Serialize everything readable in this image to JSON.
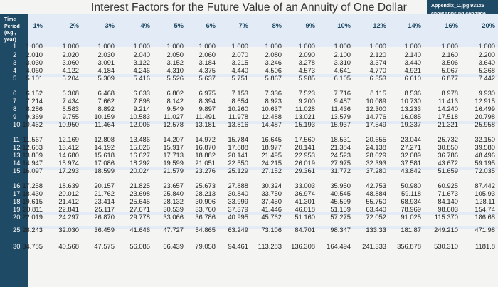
{
  "title": "Interest Factors for the Future Value of an Annuity of One Dollar",
  "badge": [
    "Appendix_C.jpg 931x5",
    "cnow.apps.ng.cengage."
  ],
  "corner_header": [
    "Time",
    "Period",
    "(e.g.,",
    "year)"
  ],
  "rates": [
    "1%",
    "2%",
    "3%",
    "4%",
    "5%",
    "6%",
    "7%",
    "8%",
    "9%",
    "10%",
    "12%",
    "14%",
    "16%",
    "20%"
  ],
  "rows": [
    {
      "n": "1",
      "v": [
        "1.000",
        "1.000",
        "1.000",
        "1.000",
        "1.000",
        "1.000",
        "1.000",
        "1.000",
        "1.000",
        "1.000",
        "1.000",
        "1.000",
        "1.000",
        "1.000"
      ]
    },
    {
      "n": "2",
      "v": [
        "2.010",
        "2.020",
        "2.030",
        "2.040",
        "2.050",
        "2.060",
        "2.070",
        "2.080",
        "2.090",
        "2.100",
        "2.120",
        "2.140",
        "2.160",
        "2.200"
      ]
    },
    {
      "n": "3",
      "v": [
        "3.030",
        "3.060",
        "3.091",
        "3.122",
        "3.152",
        "3.184",
        "3.215",
        "3.246",
        "3.278",
        "3.310",
        "3.374",
        "3.440",
        "3.506",
        "3.640"
      ]
    },
    {
      "n": "4",
      "v": [
        "4.060",
        "4.122",
        "4.184",
        "4.246",
        "4.310",
        "4.375",
        "4.440",
        "4.506",
        "4.573",
        "4.641",
        "4.770",
        "4.921",
        "5.067",
        "5.368"
      ]
    },
    {
      "n": "5",
      "v": [
        "5.101",
        "5.204",
        "5.309",
        "5.416",
        "5.526",
        "5.637",
        "5.751",
        "5.867",
        "5.985",
        "6.105",
        "6.353",
        "6.610",
        "6.877",
        "7.442"
      ]
    },
    {
      "n": "6",
      "v": [
        "6.152",
        "6.308",
        "6.468",
        "6.633",
        "6.802",
        "6.975",
        "7.153",
        "7.336",
        "7.523",
        "7.716",
        "8.115",
        "8.536",
        "8.978",
        "9.930"
      ]
    },
    {
      "n": "7",
      "v": [
        "7.214",
        "7.434",
        "7.662",
        "7.898",
        "8.142",
        "8.394",
        "8.654",
        "8.923",
        "9.200",
        "9.487",
        "10.089",
        "10.730",
        "11.413",
        "12.915"
      ]
    },
    {
      "n": "8",
      "v": [
        "8.286",
        "8.583",
        "8.892",
        "9.214",
        "9.549",
        "9.897",
        "10.260",
        "10.637",
        "11.028",
        "11.436",
        "12.300",
        "13.233",
        "14.240",
        "16.499"
      ]
    },
    {
      "n": "9",
      "v": [
        "9.369",
        "9.755",
        "10.159",
        "10.583",
        "11.027",
        "11.491",
        "11.978",
        "12.488",
        "13.021",
        "13.579",
        "14.776",
        "16.085",
        "17.518",
        "20.798"
      ]
    },
    {
      "n": "10",
      "v": [
        "10.462",
        "10.950",
        "11.464",
        "12.006",
        "12.578",
        "13.181",
        "13.816",
        "14.487",
        "15.193",
        "15.937",
        "17.549",
        "19.337",
        "21.321",
        "25.958"
      ]
    },
    {
      "n": "11",
      "v": [
        "11.567",
        "12.169",
        "12.808",
        "13.486",
        "14.207",
        "14.972",
        "15.784",
        "16.645",
        "17.560",
        "18.531",
        "20.655",
        "23.044",
        "25.732",
        "32.150"
      ]
    },
    {
      "n": "12",
      "v": [
        "12.683",
        "13.412",
        "14.192",
        "15.026",
        "15.917",
        "16.870",
        "17.888",
        "18.977",
        "20.141",
        "21.384",
        "24.138",
        "27.271",
        "30.850",
        "39.580"
      ]
    },
    {
      "n": "13",
      "v": [
        "13.809",
        "14.680",
        "15.618",
        "16.627",
        "17.713",
        "18.882",
        "20.141",
        "21.495",
        "22.953",
        "24.523",
        "28.029",
        "32.089",
        "36.786",
        "48.496"
      ]
    },
    {
      "n": "14",
      "v": [
        "14.947",
        "15.974",
        "17.086",
        "18.292",
        "19.599",
        "21.051",
        "22.550",
        "24.215",
        "26.019",
        "27.975",
        "32.393",
        "37.581",
        "43.672",
        "59.195"
      ]
    },
    {
      "n": "15",
      "v": [
        "16.097",
        "17.293",
        "18.599",
        "20.024",
        "21.579",
        "23.276",
        "25.129",
        "27.152",
        "29.361",
        "31.772",
        "37.280",
        "43.842",
        "51.659",
        "72.035"
      ]
    },
    {
      "n": "16",
      "v": [
        "17.258",
        "18.639",
        "20.157",
        "21.825",
        "23.657",
        "25.673",
        "27.888",
        "30.324",
        "33.003",
        "35.950",
        "42.753",
        "50.980",
        "60.925",
        "87.442"
      ]
    },
    {
      "n": "17",
      "v": [
        "18.430",
        "20.012",
        "21.762",
        "23.698",
        "25.840",
        "28.213",
        "30.840",
        "33.750",
        "36.974",
        "40.545",
        "48.884",
        "59.118",
        "71.673",
        "105.93"
      ]
    },
    {
      "n": "18",
      "v": [
        "19.615",
        "21.412",
        "23.414",
        "25.645",
        "28.132",
        "30.906",
        "33.999",
        "37.450",
        "41.301",
        "45.599",
        "55.750",
        "68.934",
        "84.140",
        "128.11"
      ]
    },
    {
      "n": "19",
      "v": [
        "20.811",
        "22.841",
        "25.117",
        "27.671",
        "30.539",
        "33.760",
        "37.379",
        "41.446",
        "46.018",
        "51.159",
        "63.440",
        "78.969",
        "98.603",
        "154.74"
      ]
    },
    {
      "n": "20",
      "v": [
        "22.019",
        "24.297",
        "26.870",
        "29.778",
        "33.066",
        "36.786",
        "40.995",
        "45.762",
        "51.160",
        "57.275",
        "72.052",
        "91.025",
        "115.370",
        "186.68"
      ]
    },
    {
      "n": "25",
      "v": [
        "28.243",
        "32.030",
        "36.459",
        "41.646",
        "47.727",
        "54.865",
        "63.249",
        "73.106",
        "84.701",
        "98.347",
        "133.33",
        "181.87",
        "249.210",
        "471.98"
      ]
    },
    {
      "n": "30",
      "v": [
        "34.785",
        "40.568",
        "47.575",
        "56.085",
        "66.439",
        "79.058",
        "94.461",
        "113.283",
        "136.308",
        "164.494",
        "241.333",
        "356.878",
        "530.310",
        "1181.8"
      ]
    }
  ]
}
